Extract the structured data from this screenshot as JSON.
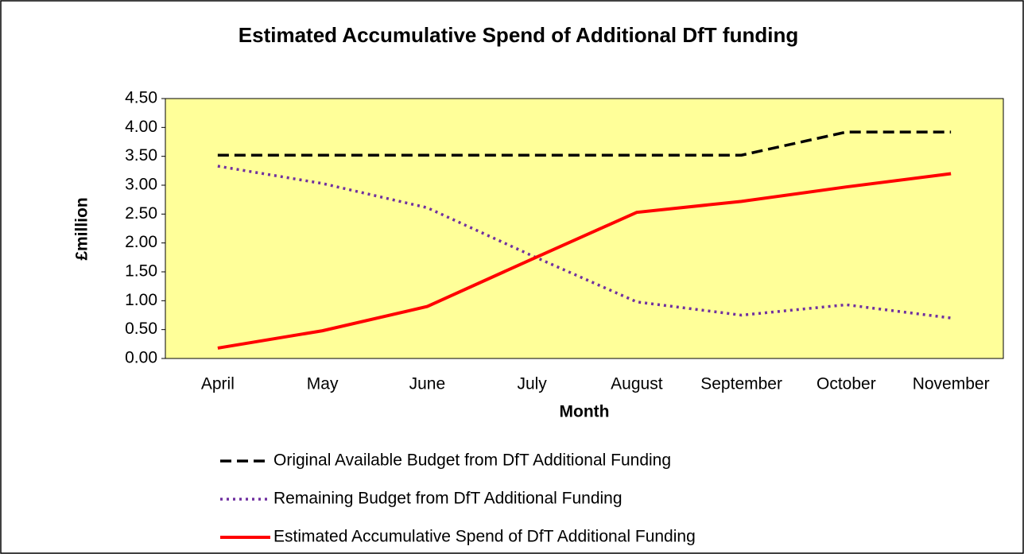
{
  "chart_data": {
    "type": "line",
    "title": "Estimated Accumulative Spend of Additional DfT funding",
    "x_label": "Month",
    "y_label": "£million",
    "categories": [
      "April",
      "May",
      "June",
      "July",
      "August",
      "September",
      "October",
      "November"
    ],
    "series": [
      {
        "name": "Original Available Budget from DfT Additional Funding",
        "color": "#000000",
        "dash": "dashed",
        "values": [
          3.52,
          3.52,
          3.52,
          3.52,
          3.52,
          3.52,
          3.92,
          3.92
        ]
      },
      {
        "name": "Remaining Budget from DfT Additional Funding",
        "color": "#7030a0",
        "dash": "dotted",
        "values": [
          3.33,
          3.03,
          2.61,
          1.78,
          0.98,
          0.75,
          0.93,
          0.7
        ]
      },
      {
        "name": "Estimated Accumulative Spend of DfT Additional Funding",
        "color": "#ff0000",
        "dash": "solid",
        "values": [
          0.18,
          0.48,
          0.9,
          1.72,
          2.53,
          2.72,
          2.97,
          3.2
        ]
      }
    ],
    "ylim": [
      0,
      4.5
    ],
    "yticks": [
      {
        "value": 0,
        "label": "0.00"
      },
      {
        "value": 0.5,
        "label": "0.50"
      },
      {
        "value": 1,
        "label": "1.00"
      },
      {
        "value": 1.5,
        "label": "1.50"
      },
      {
        "value": 2,
        "label": "2.00"
      },
      {
        "value": 2.5,
        "label": "2.50"
      },
      {
        "value": 3,
        "label": "3.00"
      },
      {
        "value": 3.5,
        "label": "3.50"
      },
      {
        "value": 4,
        "label": "4.00"
      },
      {
        "value": 4.5,
        "label": "4.50"
      }
    ],
    "plot_background": "#ffff99",
    "legend": "bottom"
  }
}
